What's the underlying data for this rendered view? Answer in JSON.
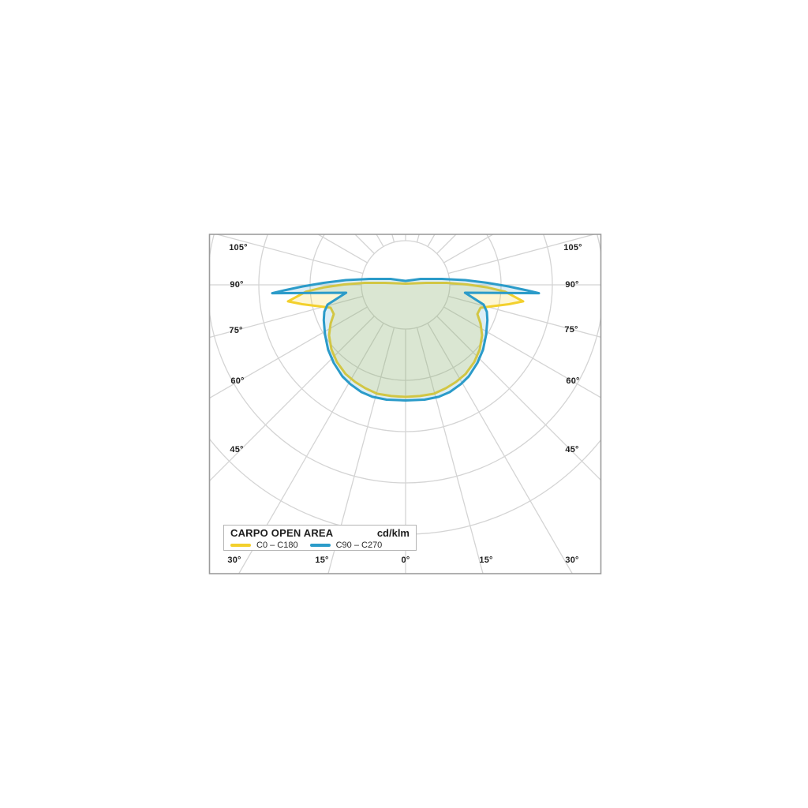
{
  "page": {
    "background_color": "#ffffff"
  },
  "legend": {
    "title": "CARPO OPEN AREA",
    "unit": "cd/klm",
    "series": [
      {
        "label": "C0 – C180",
        "color": "#F3D02C"
      },
      {
        "label": "C90 – C270",
        "color": "#2B9BC9"
      }
    ]
  },
  "chart_data": {
    "type": "polar_photometric_curve",
    "title": "CARPO OPEN AREA",
    "unit": "cd/klm",
    "angle_convention": "0 deg points straight down (nadir); angles increase toward both sides; diagram symmetric about vertical axis",
    "grid": {
      "ring_radii_units": [
        0.862,
        1.862,
        2.862,
        3.862,
        4.862
      ],
      "ray_step_deg": 15,
      "rays_start_at_ring": 1,
      "radial_scale_labeled": false,
      "grid_color": "#d4d4d4",
      "border_color": "#9c9c9c"
    },
    "angle_labels_left": [
      "105°",
      "90°",
      "75°",
      "60°",
      "45°"
    ],
    "angle_labels_right": [
      "105°",
      "90°",
      "75°",
      "60°",
      "45°"
    ],
    "angle_labels_bottom": [
      "30°",
      "15°",
      "0°",
      "15°",
      "30°"
    ],
    "series": [
      {
        "name": "C0 – C180",
        "stroke": "#F3D02C",
        "fill": "rgba(244,209,41,0.20)",
        "symmetric_mirror": true,
        "samples_deg_vs_r_units": [
          [
            0,
            2.185
          ],
          [
            7.3,
            2.186
          ],
          [
            14.6,
            2.194
          ],
          [
            21.3,
            2.163
          ],
          [
            27.5,
            2.134
          ],
          [
            33.9,
            2.095
          ],
          [
            41.6,
            2.015
          ],
          [
            48.9,
            1.918
          ],
          [
            56.6,
            1.788
          ],
          [
            62.7,
            1.645
          ],
          [
            67.9,
            1.511
          ],
          [
            73.0,
            1.528
          ],
          [
            76.3,
            1.757
          ],
          [
            79.4,
            2.051
          ],
          [
            82.0,
            2.315
          ],
          [
            86.1,
            1.943
          ],
          [
            88.3,
            1.585
          ],
          [
            90.4,
            1.2
          ],
          [
            92.8,
            0.802
          ],
          [
            95.5,
            0.402
          ],
          [
            180,
            0.023
          ]
        ]
      },
      {
        "name": "C90 – C270",
        "stroke": "#2B9BC9",
        "fill": "rgba(38,151,200,0.16)",
        "symmetric_mirror": true,
        "samples_deg_vs_r_units": [
          [
            0,
            2.254
          ],
          [
            9.4,
            2.269
          ],
          [
            16.5,
            2.277
          ],
          [
            22.4,
            2.262
          ],
          [
            29.1,
            2.215
          ],
          [
            34.6,
            2.169
          ],
          [
            42.6,
            2.069
          ],
          [
            50.1,
            1.969
          ],
          [
            58.3,
            1.846
          ],
          [
            66.6,
            1.738
          ],
          [
            71.7,
            1.669
          ],
          [
            75.8,
            1.569
          ],
          [
            82.4,
            1.169
          ],
          [
            86.4,
            2.605
          ],
          [
            87.4,
            2.369
          ],
          [
            89.1,
            2.015
          ],
          [
            91.4,
            1.6
          ],
          [
            94.5,
            1.169
          ],
          [
            99.3,
            0.717
          ],
          [
            111.5,
            0.314
          ],
          [
            180,
            0.077
          ]
        ]
      }
    ]
  }
}
